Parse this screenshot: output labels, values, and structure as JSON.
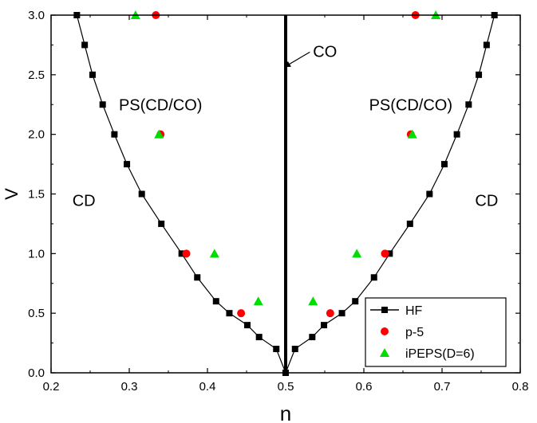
{
  "chart_data": {
    "type": "scatter",
    "xlabel": "n",
    "ylabel": "V",
    "xlim": [
      0.2,
      0.8
    ],
    "ylim": [
      0.0,
      3.0
    ],
    "x_ticks": [
      "0.2",
      "0.3",
      "0.4",
      "0.5",
      "0.6",
      "0.7",
      "0.8"
    ],
    "y_ticks": [
      "0.0",
      "0.5",
      "1.0",
      "1.5",
      "2.0",
      "2.5",
      "3.0"
    ],
    "grid": false,
    "legend_position": "bottom-right",
    "colors": {
      "HF": "#000000",
      "p-5": "#ff0000",
      "iPEPS(D=6)": "#00dd00",
      "phase_boundary": "#000000"
    },
    "series": [
      {
        "name": "HF",
        "marker": "square",
        "line": true,
        "points": [
          [
            0.233,
            3.0
          ],
          [
            0.243,
            2.75
          ],
          [
            0.253,
            2.5
          ],
          [
            0.266,
            2.25
          ],
          [
            0.281,
            2.0
          ],
          [
            0.297,
            1.75
          ],
          [
            0.316,
            1.5
          ],
          [
            0.341,
            1.25
          ],
          [
            0.367,
            1.0
          ],
          [
            0.387,
            0.8
          ],
          [
            0.411,
            0.6
          ],
          [
            0.428,
            0.5
          ],
          [
            0.451,
            0.4
          ],
          [
            0.466,
            0.3
          ],
          [
            0.488,
            0.2
          ],
          [
            0.5,
            0.0
          ],
          [
            0.512,
            0.2
          ],
          [
            0.534,
            0.3
          ],
          [
            0.549,
            0.4
          ],
          [
            0.572,
            0.5
          ],
          [
            0.589,
            0.6
          ],
          [
            0.613,
            0.8
          ],
          [
            0.633,
            1.0
          ],
          [
            0.659,
            1.25
          ],
          [
            0.684,
            1.5
          ],
          [
            0.703,
            1.75
          ],
          [
            0.719,
            2.0
          ],
          [
            0.734,
            2.25
          ],
          [
            0.747,
            2.5
          ],
          [
            0.757,
            2.75
          ],
          [
            0.767,
            3.0
          ]
        ]
      },
      {
        "name": "p-5",
        "marker": "circle",
        "line": false,
        "points": [
          [
            0.334,
            3.0
          ],
          [
            0.34,
            2.0
          ],
          [
            0.373,
            1.0
          ],
          [
            0.443,
            0.5
          ],
          [
            0.557,
            0.5
          ],
          [
            0.627,
            1.0
          ],
          [
            0.66,
            2.0
          ],
          [
            0.666,
            3.0
          ]
        ]
      },
      {
        "name": "iPEPS(D=6)",
        "marker": "triangle",
        "line": false,
        "points": [
          [
            0.308,
            3.0
          ],
          [
            0.338,
            2.0
          ],
          [
            0.409,
            1.0
          ],
          [
            0.465,
            0.6
          ],
          [
            0.535,
            0.6
          ],
          [
            0.591,
            1.0
          ],
          [
            0.662,
            2.0
          ],
          [
            0.692,
            3.0
          ]
        ]
      }
    ],
    "phase_boundary_x": 0.5,
    "annotations": [
      {
        "text": "CO",
        "x": 0.535,
        "y": 2.65,
        "arrow_from": [
          0.535,
          2.65
        ],
        "arrow_to": [
          0.505,
          2.55
        ]
      },
      {
        "text": "PS(CD/CO)",
        "x": 0.34,
        "y": 2.2
      },
      {
        "text": "PS(CD/CO)",
        "x": 0.66,
        "y": 2.2
      },
      {
        "text": "CD",
        "x": 0.242,
        "y": 1.4
      },
      {
        "text": "CD",
        "x": 0.757,
        "y": 1.4
      }
    ]
  }
}
